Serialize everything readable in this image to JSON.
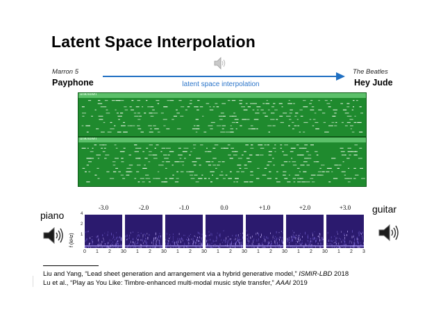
{
  "slide": {
    "title": "Latent Space Interpolation"
  },
  "source": {
    "artist": "Marron 5",
    "song": "Payphone"
  },
  "target": {
    "artist": "The Beatles",
    "song": "Hey Jude"
  },
  "arrow_label": "latent space interpolation",
  "piano_roll": {
    "tracks": [
      {
        "label": "unknown"
      },
      {
        "label": "unknown"
      }
    ]
  },
  "spectrograms": {
    "left_label": "piano",
    "right_label": "guitar",
    "y_axis_label": "f (kHz)",
    "y_ticks": [
      "4",
      "2",
      "1"
    ],
    "x_ticks": [
      "0",
      "1",
      "2",
      "3"
    ],
    "values": [
      "-3.0",
      "-2.0",
      "-1.0",
      "0.0",
      "+1.0",
      "+2.0",
      "+3.0"
    ]
  },
  "icons": [
    "speaker-icon",
    "speaker-icon",
    "speaker-icon"
  ],
  "colors": {
    "arrow": "#1f6fc2",
    "arrow_label": "#2a74c9",
    "piano_roll": "#1f8a2e",
    "spectrogram": "#2b1a6e"
  },
  "references": [
    {
      "authors": "Liu and Yang, “Lead sheet generation and arrangement via a hybrid generative model,”",
      "venue": "ISMIR-LBD",
      "year": "2018"
    },
    {
      "authors": "Lu et al., “Play as You Like: Timbre-enhanced multi-modal music style transfer,”",
      "venue": "AAAI",
      "year": "2019"
    }
  ]
}
